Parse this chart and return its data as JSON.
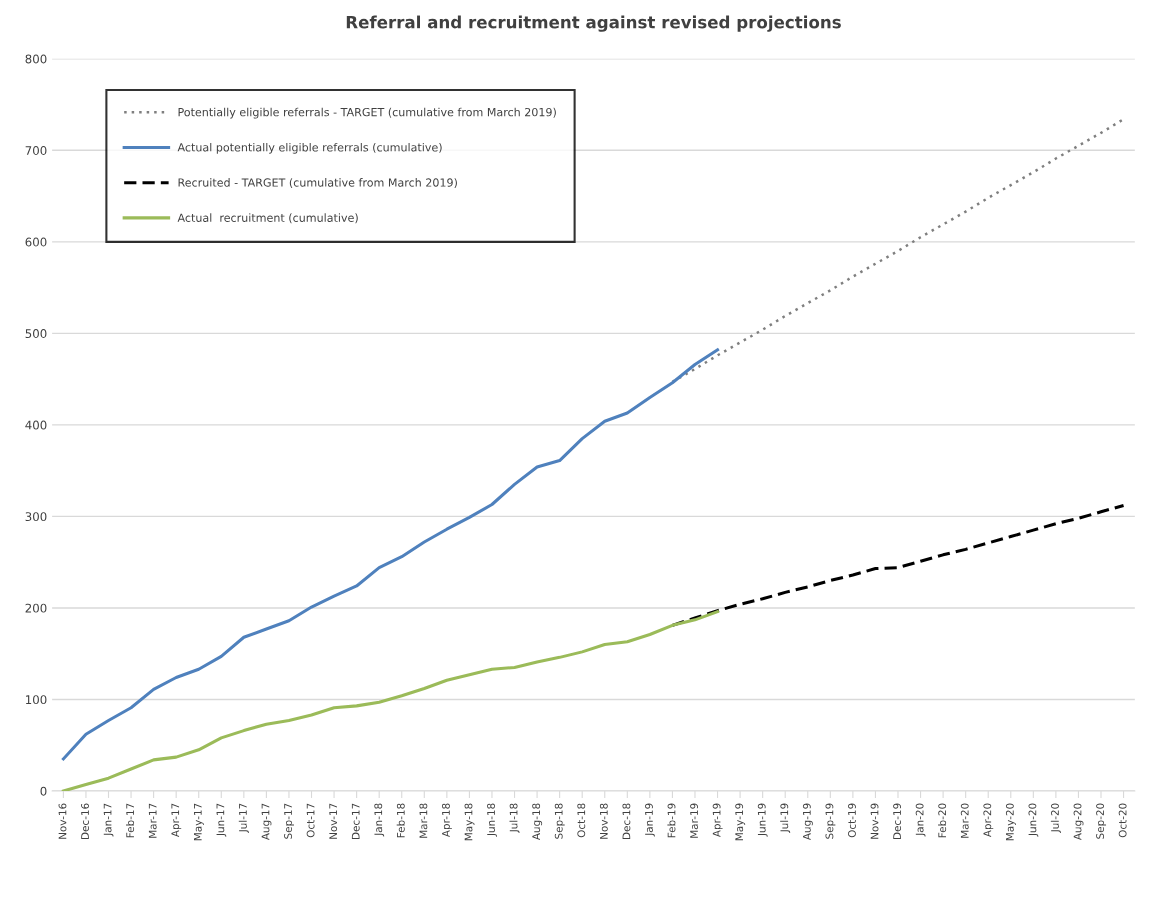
{
  "chart_data": {
    "type": "line",
    "title": "Referral and recruitment against revised projections",
    "categories": [
      "Nov-16",
      "Dec-16",
      "Jan-17",
      "Feb-17",
      "Mar-17",
      "Apr-17",
      "May-17",
      "Jun-17",
      "Jul-17",
      "Aug-17",
      "Sep-17",
      "Oct-17",
      "Nov-17",
      "Dec-17",
      "Jan-18",
      "Feb-18",
      "Mar-18",
      "Apr-18",
      "May-18",
      "Jun-18",
      "Jul-18",
      "Aug-18",
      "Sep-18",
      "Oct-18",
      "Nov-18",
      "Dec-18",
      "Jan-19",
      "Feb-19",
      "Mar-19",
      "Apr-19",
      "May-19",
      "Jun-19",
      "Jul-19",
      "Aug-19",
      "Sep-19",
      "Oct-19",
      "Nov-19",
      "Dec-19",
      "Jan-20",
      "Feb-20",
      "Mar-20",
      "Apr-20",
      "May-20",
      "Jun-20",
      "Jul-20",
      "Aug-20",
      "Sep-20",
      "Oct-20"
    ],
    "series": [
      {
        "name": "Potentially eligible referrals - TARGET (cumulative from March 2019)",
        "color": "#7f7f7f",
        "line_style": "dotted",
        "values": [
          null,
          null,
          null,
          null,
          null,
          null,
          null,
          null,
          null,
          null,
          null,
          null,
          null,
          null,
          null,
          null,
          null,
          null,
          null,
          null,
          null,
          null,
          null,
          null,
          null,
          null,
          null,
          447,
          461,
          476,
          490,
          504,
          519,
          533,
          547,
          562,
          576,
          590,
          605,
          619,
          633,
          648,
          662,
          676,
          691,
          705,
          719,
          734
        ]
      },
      {
        "name": "Actual potentially eligible referrals (cumulative)",
        "color": "#4f81bd",
        "line_style": "solid",
        "values": [
          35,
          62,
          77,
          91,
          111,
          124,
          133,
          147,
          168,
          177,
          186,
          201,
          213,
          224,
          244,
          256,
          272,
          286,
          299,
          313,
          335,
          354,
          361,
          385,
          404,
          413,
          430,
          446,
          466,
          482,
          null,
          null,
          null,
          null,
          null,
          null,
          null,
          null,
          null,
          null,
          null,
          null,
          null,
          null,
          null,
          null,
          null,
          null
        ]
      },
      {
        "name": "Recruited - TARGET (cumulative from March 2019)",
        "color": "#000000",
        "line_style": "dashed",
        "values": [
          null,
          null,
          null,
          null,
          null,
          null,
          null,
          null,
          null,
          null,
          null,
          null,
          null,
          null,
          null,
          null,
          null,
          null,
          null,
          null,
          null,
          null,
          null,
          null,
          null,
          null,
          null,
          181,
          189,
          197,
          204,
          210,
          217,
          223,
          230,
          236,
          243,
          244,
          251,
          258,
          264,
          271,
          278,
          285,
          292,
          298,
          305,
          312
        ]
      },
      {
        "name": "Actual  recruitment (cumulative)",
        "color": "#9bbb59",
        "line_style": "solid",
        "values": [
          0,
          7,
          14,
          24,
          34,
          37,
          45,
          58,
          66,
          73,
          77,
          83,
          91,
          93,
          97,
          104,
          112,
          121,
          127,
          133,
          135,
          141,
          146,
          152,
          160,
          163,
          171,
          181,
          187,
          196,
          null,
          null,
          null,
          null,
          null,
          null,
          null,
          null,
          null,
          null,
          null,
          null,
          null,
          null,
          null,
          null,
          null,
          null
        ]
      }
    ],
    "ylim": [
      0,
      800
    ],
    "yticks": [
      0,
      100,
      200,
      300,
      400,
      500,
      600,
      700,
      800
    ],
    "grid": "y",
    "legend": "top left",
    "marker": "none"
  }
}
